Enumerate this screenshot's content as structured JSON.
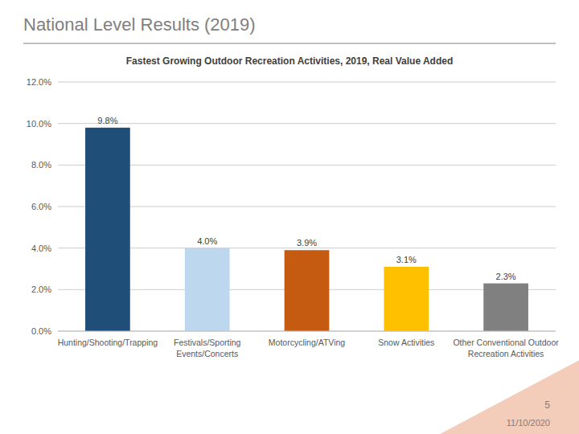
{
  "chart_data": {
    "type": "bar",
    "title": "National Level Results (2019)",
    "subtitle": "Fastest Growing Outdoor Recreation Activities, 2019, Real Value Added",
    "categories": [
      "Hunting/Shooting/Trapping",
      "Festivals/Sporting\nEvents/Concerts",
      "Motorcycling/ATVing",
      "Snow Activities",
      "Other Conventional Outdoor\nRecreation Activities"
    ],
    "values": [
      0.098,
      0.04,
      0.039,
      0.031,
      0.023
    ],
    "value_labels": [
      "9.8%",
      "4.0%",
      "3.9%",
      "3.1%",
      "2.3%"
    ],
    "data_labels": true,
    "colors": [
      "#1F4E79",
      "#BDD7EE",
      "#C55A11",
      "#FFC000",
      "#808080"
    ],
    "ylim": [
      0,
      0.12
    ],
    "yticks": [
      {
        "value": 0.0,
        "label": "0.0%"
      },
      {
        "value": 0.02,
        "label": "2.0%"
      },
      {
        "value": 0.04,
        "label": "4.0%"
      },
      {
        "value": 0.06,
        "label": "6.0%"
      },
      {
        "value": 0.08,
        "label": "8.0%"
      },
      {
        "value": 0.1,
        "label": "10.0%"
      },
      {
        "value": 0.12,
        "label": "12.0%"
      }
    ],
    "grid": true,
    "annotations": [
      "5",
      "11/10/2020"
    ]
  }
}
